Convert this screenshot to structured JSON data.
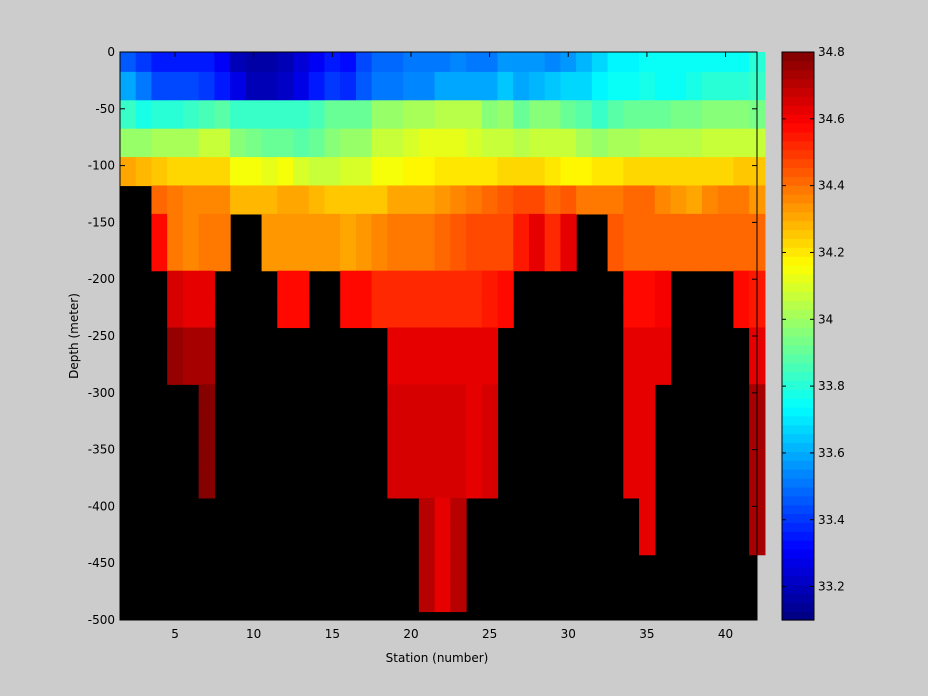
{
  "chart_data": {
    "type": "heatmap",
    "title": "",
    "xlabel": "Station (number)",
    "ylabel": "Depth (meter)",
    "x_ticks": [
      5,
      10,
      15,
      20,
      25,
      30,
      35,
      40
    ],
    "y_ticks": [
      0,
      -50,
      -100,
      -150,
      -200,
      -250,
      -300,
      -350,
      -400,
      -450,
      -500
    ],
    "xlim": [
      1.5,
      42
    ],
    "ylim": [
      -500,
      0
    ],
    "x_start": 2,
    "depth_start": -5,
    "depth_step": -25,
    "background_color": "#000000",
    "colormap": "jet",
    "colorbar": {
      "clim": [
        33.1,
        34.8
      ],
      "ticks": [
        "33.2",
        "33.4",
        "33.6",
        "33.8",
        "34",
        "34.2",
        "34.4",
        "34.6",
        "34.8"
      ],
      "tick_values": [
        33.2,
        33.4,
        33.6,
        33.8,
        34.0,
        34.2,
        34.4,
        34.6,
        34.8
      ]
    },
    "columns": [
      [
        33.46,
        33.58,
        33.84,
        34.0,
        34.32
      ],
      [
        33.4,
        33.5,
        33.78,
        34.0,
        34.28
      ],
      [
        33.36,
        33.44,
        33.8,
        34.02,
        34.26,
        34.42,
        34.58,
        34.58
      ],
      [
        33.34,
        33.42,
        33.8,
        34.02,
        34.24,
        34.38,
        34.4,
        34.4,
        34.66,
        34.66,
        34.76,
        34.76
      ],
      [
        33.34,
        33.42,
        33.84,
        34.02,
        34.22,
        34.36,
        34.36,
        34.36,
        34.64,
        34.64,
        34.74,
        34.74
      ],
      [
        33.34,
        33.4,
        33.86,
        34.06,
        34.24,
        34.36,
        34.38,
        34.38,
        34.64,
        34.64,
        34.74,
        34.74,
        34.78,
        34.78,
        34.78,
        34.78
      ],
      [
        33.3,
        33.36,
        33.88,
        34.06,
        34.24,
        34.36,
        34.38,
        34.38
      ],
      [
        33.2,
        33.26,
        33.84,
        33.96,
        34.14,
        34.28
      ],
      [
        33.16,
        33.2,
        33.82,
        33.94,
        34.14,
        34.28
      ],
      [
        33.16,
        33.2,
        33.82,
        33.92,
        34.12,
        34.28,
        34.34,
        34.34
      ],
      [
        33.18,
        33.22,
        33.84,
        33.92,
        34.14,
        34.3,
        34.34,
        34.34,
        34.58,
        34.58
      ],
      [
        33.24,
        33.28,
        33.84,
        33.88,
        34.1,
        34.3,
        34.34,
        34.34,
        34.58,
        34.58
      ],
      [
        33.3,
        33.34,
        33.86,
        33.9,
        34.08,
        34.28,
        34.34,
        34.34
      ],
      [
        33.36,
        33.4,
        33.9,
        33.96,
        34.06,
        34.26,
        34.34,
        34.34
      ],
      [
        33.32,
        33.38,
        33.92,
        33.98,
        34.1,
        34.26,
        34.32,
        34.32,
        34.58,
        34.58
      ],
      [
        33.42,
        33.46,
        33.92,
        33.98,
        34.1,
        34.26,
        34.34,
        34.34,
        34.58,
        34.58
      ],
      [
        33.48,
        33.52,
        34.0,
        34.06,
        34.16,
        34.26,
        34.36,
        34.36,
        34.52,
        34.52
      ],
      [
        33.48,
        33.52,
        34.0,
        34.06,
        34.16,
        34.3,
        34.38,
        34.38,
        34.52,
        34.52,
        34.62,
        34.62,
        34.66,
        34.66,
        34.66,
        34.66
      ],
      [
        33.5,
        33.54,
        34.02,
        34.1,
        34.18,
        34.3,
        34.38,
        34.38,
        34.52,
        34.52,
        34.62,
        34.62,
        34.66,
        34.66,
        34.66,
        34.66
      ],
      [
        33.5,
        33.54,
        34.02,
        34.12,
        34.18,
        34.32,
        34.4,
        34.4,
        34.52,
        34.52,
        34.62,
        34.62,
        34.66,
        34.66,
        34.66,
        34.66,
        34.72,
        34.72,
        34.72,
        34.72
      ],
      [
        33.52,
        33.58,
        34.04,
        34.12,
        34.2,
        34.34,
        34.42,
        34.42,
        34.52,
        34.52,
        34.62,
        34.62,
        34.66,
        34.66,
        34.66,
        34.66,
        34.62,
        34.62,
        34.62,
        34.62
      ],
      [
        33.54,
        33.6,
        34.04,
        34.12,
        34.2,
        34.36,
        34.44,
        34.44,
        34.52,
        34.52,
        34.62,
        34.62,
        34.66,
        34.66,
        34.66,
        34.66,
        34.72,
        34.72,
        34.72,
        34.72
      ],
      [
        33.52,
        33.6,
        34.04,
        34.1,
        34.2,
        34.4,
        34.46,
        34.46,
        34.52,
        34.52,
        34.62,
        34.62,
        34.62,
        34.62,
        34.62,
        34.62
      ],
      [
        33.52,
        33.58,
        33.96,
        34.06,
        34.2,
        34.42,
        34.46,
        34.46,
        34.54,
        34.54,
        34.62,
        34.62,
        34.66,
        34.66,
        34.66,
        34.66
      ],
      [
        33.56,
        33.64,
        34.0,
        34.06,
        34.24,
        34.44,
        34.48,
        34.48,
        34.58,
        34.58
      ],
      [
        33.56,
        33.6,
        33.92,
        34.04,
        34.22,
        34.46,
        34.56,
        34.56
      ],
      [
        33.56,
        33.62,
        33.96,
        34.06,
        34.22,
        34.48,
        34.64,
        34.64
      ],
      [
        33.54,
        33.64,
        33.96,
        34.06,
        34.2,
        34.42,
        34.52,
        34.52
      ],
      [
        33.56,
        33.68,
        33.92,
        34.06,
        34.18,
        34.44,
        34.64,
        34.64
      ],
      [
        33.62,
        33.68,
        33.88,
        34.02,
        34.18,
        34.4
      ],
      [
        33.66,
        33.72,
        33.84,
        34.0,
        34.2,
        34.4
      ],
      [
        33.72,
        33.76,
        33.88,
        34.02,
        34.2,
        34.4,
        34.44,
        34.44
      ],
      [
        33.72,
        33.76,
        33.9,
        34.02,
        34.22,
        34.42,
        34.42,
        34.42,
        34.58,
        34.58,
        34.62,
        34.62,
        34.64,
        34.64,
        34.64,
        34.64
      ],
      [
        33.74,
        33.78,
        33.92,
        34.04,
        34.22,
        34.42,
        34.42,
        34.42,
        34.58,
        34.58,
        34.62,
        34.62,
        34.64,
        34.64,
        34.64,
        34.64,
        34.64,
        34.64
      ],
      [
        33.74,
        33.76,
        33.92,
        34.04,
        34.24,
        34.36,
        34.42,
        34.42,
        34.6,
        34.6,
        34.64,
        34.64
      ],
      [
        33.74,
        33.76,
        33.94,
        34.04,
        34.24,
        34.34,
        34.42,
        34.42
      ],
      [
        33.76,
        33.78,
        33.94,
        34.04,
        34.24,
        34.32,
        34.42,
        34.42
      ],
      [
        33.76,
        33.8,
        33.96,
        34.06,
        34.24,
        34.36,
        34.42,
        34.42
      ],
      [
        33.76,
        33.8,
        33.96,
        34.08,
        34.24,
        34.38,
        34.42,
        34.42
      ],
      [
        33.76,
        33.8,
        33.96,
        34.08,
        34.26,
        34.38,
        34.42,
        34.42,
        34.58,
        34.58
      ],
      [
        33.8,
        33.84,
        33.94,
        34.06,
        34.26,
        34.34,
        34.42,
        34.42,
        34.56,
        34.56,
        34.64,
        34.64,
        34.74,
        34.74,
        34.74,
        34.74,
        34.74,
        34.74
      ]
    ]
  }
}
